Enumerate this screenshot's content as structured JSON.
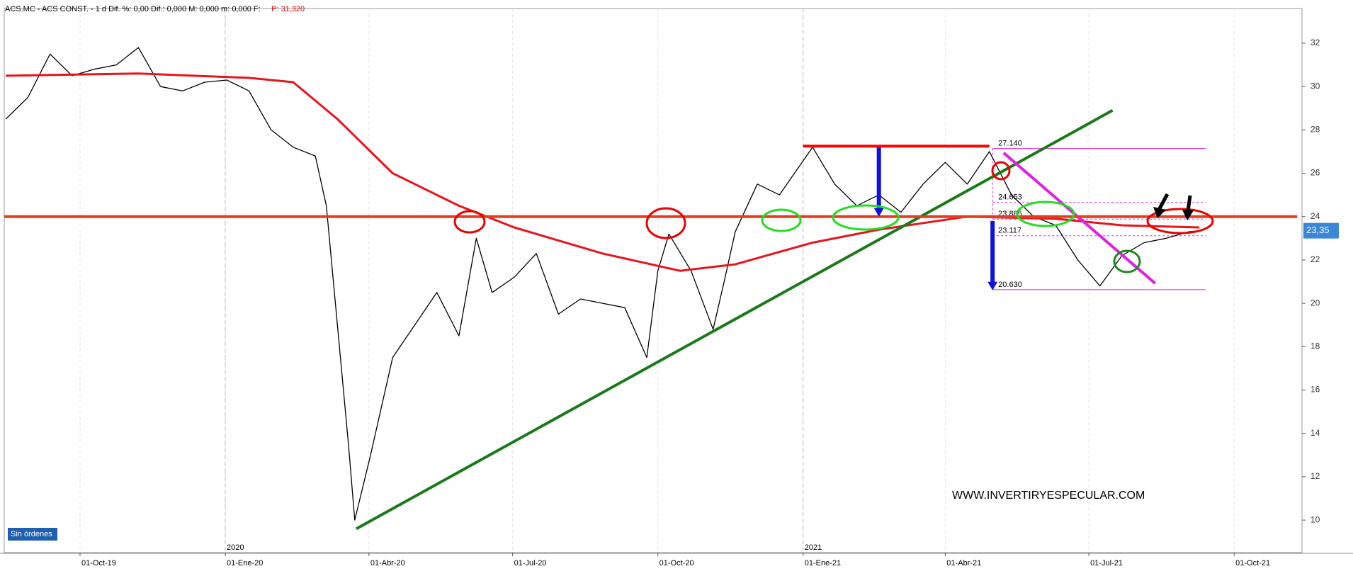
{
  "chart_data": {
    "type": "line",
    "title": "ACS.MC - ACS CONST. -  1 d  Dif. %: 0,00  Dif.: 0,000  M: 0,000  m: 0,000  F:",
    "subtitle": "P: 31,320",
    "xlim": [
      "2019-08-14",
      "2021-11-13"
    ],
    "ylim": [
      8.5,
      33.6
    ],
    "yticks": [
      10,
      12,
      14,
      16,
      18,
      20,
      22,
      24,
      26,
      28,
      30,
      32
    ],
    "xticks": [
      {
        "value": "2019-10-01",
        "label": "01-Oct-19"
      },
      {
        "value": "2020-01-01",
        "label": "01-Ene-20"
      },
      {
        "value": "2020-04-01",
        "label": "01-Abr-20"
      },
      {
        "value": "2020-07-01",
        "label": "01-Jul-20"
      },
      {
        "value": "2020-10-01",
        "label": "01-Oct-20"
      },
      {
        "value": "2021-01-01",
        "label": "01-Ene-21"
      },
      {
        "value": "2021-04-01",
        "label": "01-Abr-21"
      },
      {
        "value": "2021-07-01",
        "label": "01-Jul-21"
      },
      {
        "value": "2021-10-01",
        "label": "01-Oct-21"
      }
    ],
    "year_markers": [
      {
        "value": "2020-01-01",
        "label": "2020"
      },
      {
        "value": "2021-01-01",
        "label": "2021"
      }
    ],
    "grid": true,
    "series": [
      {
        "color": "#000000",
        "x": [
          "2019-08-15",
          "2019-08-29",
          "2019-09-12",
          "2019-09-26",
          "2019-10-10",
          "2019-10-24",
          "2019-11-07",
          "2019-11-21",
          "2019-12-05",
          "2019-12-19",
          "2020-01-02",
          "2020-01-16",
          "2020-01-30",
          "2020-02-13",
          "2020-02-27",
          "2020-03-05",
          "2020-03-12",
          "2020-03-19",
          "2020-03-23",
          "2020-04-02",
          "2020-04-16",
          "2020-04-30",
          "2020-05-14",
          "2020-05-28",
          "2020-06-08",
          "2020-06-18",
          "2020-07-02",
          "2020-07-16",
          "2020-07-30",
          "2020-08-13",
          "2020-08-27",
          "2020-09-10",
          "2020-09-24",
          "2020-10-01",
          "2020-10-08",
          "2020-10-22",
          "2020-11-05",
          "2020-11-12",
          "2020-11-19",
          "2020-12-03",
          "2020-12-17",
          "2021-01-07",
          "2021-01-21",
          "2021-02-04",
          "2021-02-18",
          "2021-03-04",
          "2021-03-18",
          "2021-04-01",
          "2021-04-15",
          "2021-04-29",
          "2021-05-13",
          "2021-05-27",
          "2021-06-10",
          "2021-06-24",
          "2021-07-08",
          "2021-07-22",
          "2021-08-05",
          "2021-08-19",
          "2021-09-02",
          "2021-09-09"
        ],
        "values": [
          28.5,
          29.5,
          31.5,
          30.5,
          30.8,
          31.0,
          31.8,
          30.0,
          29.8,
          30.2,
          30.3,
          29.8,
          28.0,
          27.2,
          26.8,
          24.5,
          19,
          13.5,
          10,
          13,
          17.5,
          19,
          20.5,
          18.5,
          23,
          20.5,
          21.2,
          22.3,
          19.5,
          20.2,
          20.0,
          19.8,
          17.5,
          21.5,
          23.2,
          21.5,
          18.8,
          21.0,
          23.3,
          25.5,
          25.0,
          27.2,
          25.5,
          24.5,
          25.0,
          24.2,
          25.5,
          26.5,
          25.5,
          27.0,
          25.0,
          24.0,
          23.6,
          22.0,
          20.8,
          22.2,
          22.8,
          23.0,
          23.3,
          23.35
        ]
      },
      {
        "color": "#e8141c",
        "x": [
          "2019-08-15",
          "2019-11-07",
          "2020-01-16",
          "2020-02-13",
          "2020-03-12",
          "2020-04-16",
          "2020-05-28",
          "2020-07-02",
          "2020-08-27",
          "2020-10-15",
          "2020-11-19",
          "2021-01-07",
          "2021-02-18",
          "2021-04-15",
          "2021-06-10",
          "2021-07-22",
          "2021-09-09"
        ],
        "values": [
          30.5,
          30.6,
          30.4,
          30.2,
          28.5,
          26.0,
          24.5,
          23.5,
          22.3,
          21.5,
          21.8,
          22.8,
          23.4,
          24.0,
          23.9,
          23.6,
          23.5
        ]
      }
    ],
    "trendlines": [
      {
        "color": "#1a7a1a",
        "x": [
          "2020-03-24",
          "2021-07-16"
        ],
        "y": [
          9.6,
          28.9
        ]
      },
      {
        "color": "#ff0000",
        "x": [
          "2021-01-01",
          "2021-04-29"
        ],
        "y": [
          27.25,
          27.25
        ]
      },
      {
        "color": "#e020e0",
        "x": [
          "2021-05-08",
          "2021-08-12"
        ],
        "y": [
          26.94,
          20.92
        ]
      },
      {
        "color": "#e04020",
        "x": [
          "2019-08-14",
          "2021-11-10"
        ],
        "y": [
          24.0,
          24.0
        ]
      }
    ],
    "arrows": [
      {
        "color": "#1010e0",
        "x": "2021-02-18",
        "y": [
          27.2,
          24.0
        ]
      },
      {
        "color": "#1010e0",
        "x": "2021-05-01",
        "y": [
          23.8,
          20.6
        ]
      }
    ],
    "fib_x": [
      "2021-05-01",
      "2021-09-13"
    ],
    "fib_levels": [
      {
        "value": 27.14,
        "label": "27.140"
      },
      {
        "value": 24.653,
        "label": "24.653"
      },
      {
        "value": 23.885,
        "label": "23.885"
      },
      {
        "value": 23.117,
        "label": "23.117"
      },
      {
        "value": 20.63,
        "label": "20.630"
      }
    ],
    "last_price": {
      "value": 23.35,
      "label": "23,35"
    },
    "watermark": "WWW.INVERTIRYESPECULAR.COM",
    "status": "Sin órdenes"
  }
}
